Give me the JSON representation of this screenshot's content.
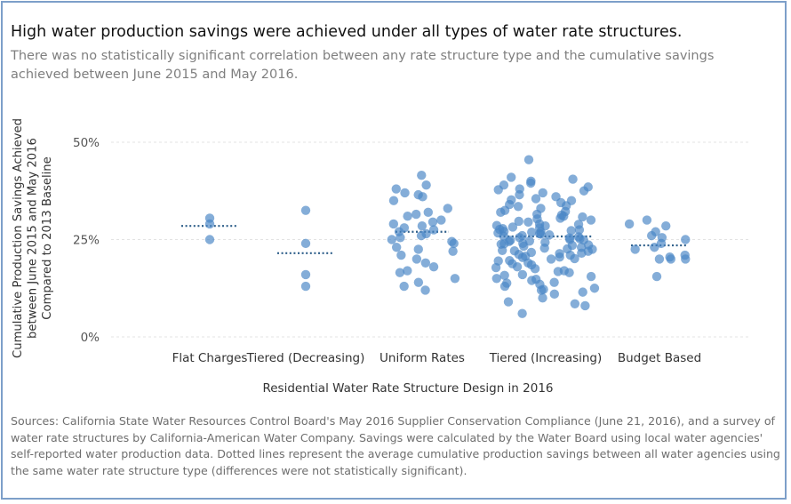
{
  "title": "High water production savings were achieved under all types of water rate structures.",
  "subtitle": "There was no statistically significant correlation between any rate structure type and the cumulative savings achieved between June 2015 and May 2016.",
  "sources": "Sources: California State Water Resources Control Board's May 2016 Supplier Conservation Compliance (June 21, 2016), and a survey of water rate structures by California-American Water Company. Savings were calculated by the Water Board using local water agencies' self-reported water production data. Dotted lines represent the average cumulative production savings between all water agencies using the same water rate structure type (differences were not statistically significant).",
  "colors": {
    "point": "#4a86c5",
    "mean_line": "#2e5f8a",
    "grid": "#e3e3e3",
    "frame": "#7d9fc9"
  },
  "chart_data": {
    "type": "scatter",
    "xlabel": "Residential Water Rate Structure Design in 2016",
    "ylabel_lines": [
      "Cumulative Production Savings Achieved",
      "between June 2015 and May 2016",
      "Compared to 2013 Baseline"
    ],
    "ylim": [
      0,
      50
    ],
    "yticks": [
      0,
      25,
      50
    ],
    "ytick_labels": [
      "0%",
      "25%",
      "50%"
    ],
    "grid": true,
    "categories": [
      "Flat Charges",
      "Tiered (Decreasing)",
      "Uniform Rates",
      "Tiered (Increasing)",
      "Budget Based"
    ],
    "means": [
      28.5,
      21.5,
      27,
      25.8,
      23.5
    ],
    "series": [
      {
        "category": "Flat Charges",
        "values": [
          30.5,
          29,
          25
        ]
      },
      {
        "category": "Tiered (Decreasing)",
        "values": [
          32.5,
          24,
          16,
          13
        ]
      },
      {
        "category": "Uniform Rates",
        "values": [
          41.5,
          39,
          38,
          37,
          36.5,
          36,
          35,
          33,
          32,
          31.5,
          31,
          30,
          29.5,
          29,
          28.5,
          28,
          27.5,
          27,
          26.5,
          26,
          25.5,
          25,
          24.5,
          24,
          23,
          22.5,
          22,
          21,
          20,
          19,
          18,
          17,
          16.5,
          15,
          14,
          13,
          12
        ]
      },
      {
        "category": "Tiered (Increasing)",
        "values": [
          45.5,
          41,
          40.5,
          40,
          39.5,
          39,
          38.5,
          38,
          37.5,
          37,
          36.5,
          36,
          35.5,
          35,
          34.5,
          34,
          33.5,
          33,
          32.5,
          32,
          31.5,
          31,
          30.5,
          30,
          29.5,
          29,
          28.5,
          28,
          27.5,
          27,
          26.5,
          26,
          25.5,
          25,
          24.5,
          24,
          23.5,
          23,
          22.5,
          22,
          21.5,
          21,
          20.5,
          20,
          19.5,
          19,
          18.5,
          18,
          17.5,
          17,
          16.5,
          16,
          15.5,
          15,
          14.5,
          14,
          13.5,
          13,
          12.5,
          12,
          11.5,
          11,
          10,
          9,
          8.5,
          8,
          6,
          37.8,
          35.2,
          33.7,
          32.2,
          31.3,
          30.8,
          29.7,
          28.9,
          28.2,
          27.6,
          27.1,
          26.7,
          26.2,
          25.7,
          25.2,
          24.8,
          24.3,
          23.8,
          23.3,
          22.8,
          22.2,
          21.7,
          21.2,
          20.7,
          20.1,
          19.6,
          18.8,
          17.8,
          16.8,
          15.8,
          14.8,
          13.8,
          12.2,
          30.3,
          28.6,
          27.3,
          26.4,
          25.4,
          24.6,
          23.6,
          22.6,
          21.4,
          20.4,
          26.9,
          25.9,
          24.9,
          23.9,
          27.8,
          22.1
        ]
      },
      {
        "category": "Budget Based",
        "values": [
          30,
          29,
          28.5,
          27,
          26,
          25.5,
          25,
          24,
          23,
          22.5,
          21,
          20.5,
          20,
          20,
          20,
          15.5
        ]
      }
    ]
  }
}
